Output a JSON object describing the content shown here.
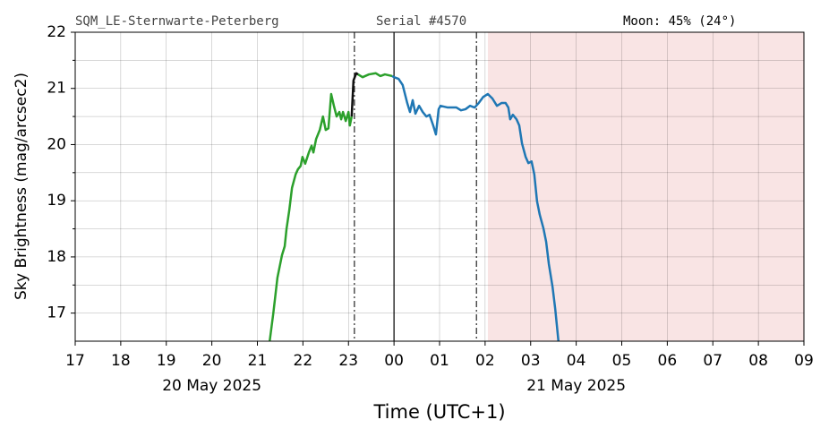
{
  "chart_data": {
    "type": "line",
    "header": {
      "site": "SQM_LE-Sternwarte-Peterberg",
      "serial": "Serial #4570",
      "moon": "Moon: 45% (24°)"
    },
    "y_label": "Sky Brightness (mag/arcsec2)",
    "x_label": "Time (UTC+1)",
    "date_labels": [
      {
        "text": "20 May 2025",
        "x": 20
      },
      {
        "text": "21 May 2025",
        "x": 28
      }
    ],
    "xlim": [
      17,
      33
    ],
    "xticks": [
      17,
      18,
      19,
      20,
      21,
      22,
      23,
      {
        "value": 24,
        "label": "00"
      },
      {
        "value": 25,
        "label": "01"
      },
      {
        "value": 26,
        "label": "02"
      },
      {
        "value": 27,
        "label": "03"
      },
      {
        "value": 28,
        "label": "04"
      },
      {
        "value": 29,
        "label": "05"
      },
      {
        "value": 30,
        "label": "06"
      },
      {
        "value": 31,
        "label": "07"
      },
      {
        "value": 32,
        "label": "08"
      },
      {
        "value": 33,
        "label": "09"
      }
    ],
    "ylim": [
      16.5,
      22
    ],
    "yticks": [
      17,
      18,
      19,
      20,
      21,
      22
    ],
    "yminorticks": [
      17.5,
      18.5,
      19.5,
      20.5,
      21.5
    ],
    "grid": true,
    "vlines": [
      {
        "x": 23.13,
        "style": "dashdot"
      },
      {
        "x": 24,
        "style": "solid"
      },
      {
        "x": 25.81,
        "style": "dashdot"
      }
    ],
    "shade": [
      26.06,
      33
    ],
    "shade_color": "#f9e4e4",
    "series": [
      {
        "color": "#2ca02c",
        "x": [
          21.27,
          21.35,
          21.44,
          21.54,
          21.6,
          21.64,
          21.7,
          21.76,
          21.84,
          21.89,
          21.95,
          21.99,
          22.05,
          22.13,
          22.19,
          22.23,
          22.29,
          22.37,
          22.44,
          22.5,
          22.56,
          22.62,
          22.68,
          22.74,
          22.8,
          22.84,
          22.88,
          22.94,
          23.0,
          23.03,
          23.07,
          23.14,
          23.21,
          23.31,
          23.45,
          23.6,
          23.7,
          23.8,
          23.96
        ],
        "values": [
          16.5,
          17.0,
          17.63,
          18.03,
          18.19,
          18.5,
          18.83,
          19.23,
          19.47,
          19.56,
          19.62,
          19.78,
          19.66,
          19.86,
          19.98,
          19.86,
          20.1,
          20.26,
          20.5,
          20.26,
          20.29,
          20.9,
          20.69,
          20.5,
          20.58,
          20.45,
          20.58,
          20.42,
          20.58,
          20.34,
          20.5,
          null,
          21.25,
          21.2,
          21.25,
          21.27,
          21.22,
          21.25,
          21.22
        ]
      },
      {
        "color": "#111111",
        "x": [
          23.07,
          23.11,
          23.17,
          23.21
        ],
        "values": [
          20.5,
          21.14,
          21.27,
          21.25
        ]
      },
      {
        "color": "#1f77b4",
        "x": [
          23.96,
          24.0,
          24.1,
          24.19,
          24.29,
          24.35,
          24.41,
          24.47,
          24.55,
          24.63,
          24.71,
          24.78,
          24.86,
          24.92,
          24.98,
          25.02,
          25.18,
          25.37,
          25.47,
          25.57,
          25.67,
          25.77,
          25.86,
          25.96,
          26.06,
          26.16,
          26.26,
          26.36,
          26.45,
          26.51,
          26.55,
          26.61,
          26.69,
          26.75,
          26.81,
          26.89,
          26.95,
          27.02,
          27.08,
          27.14,
          27.2,
          27.28,
          27.34,
          27.4,
          27.48,
          27.54,
          27.61
        ],
        "values": [
          21.22,
          21.2,
          21.17,
          21.06,
          20.74,
          20.58,
          20.79,
          20.55,
          20.69,
          20.58,
          20.5,
          20.53,
          20.34,
          20.18,
          20.63,
          20.69,
          20.66,
          20.66,
          20.61,
          20.63,
          20.69,
          20.66,
          20.74,
          20.85,
          20.9,
          20.82,
          20.69,
          20.74,
          20.74,
          20.66,
          20.45,
          20.53,
          20.45,
          20.34,
          20.02,
          19.78,
          19.67,
          19.7,
          19.47,
          18.99,
          18.75,
          18.51,
          18.27,
          17.87,
          17.47,
          17.07,
          16.5
        ]
      }
    ]
  }
}
